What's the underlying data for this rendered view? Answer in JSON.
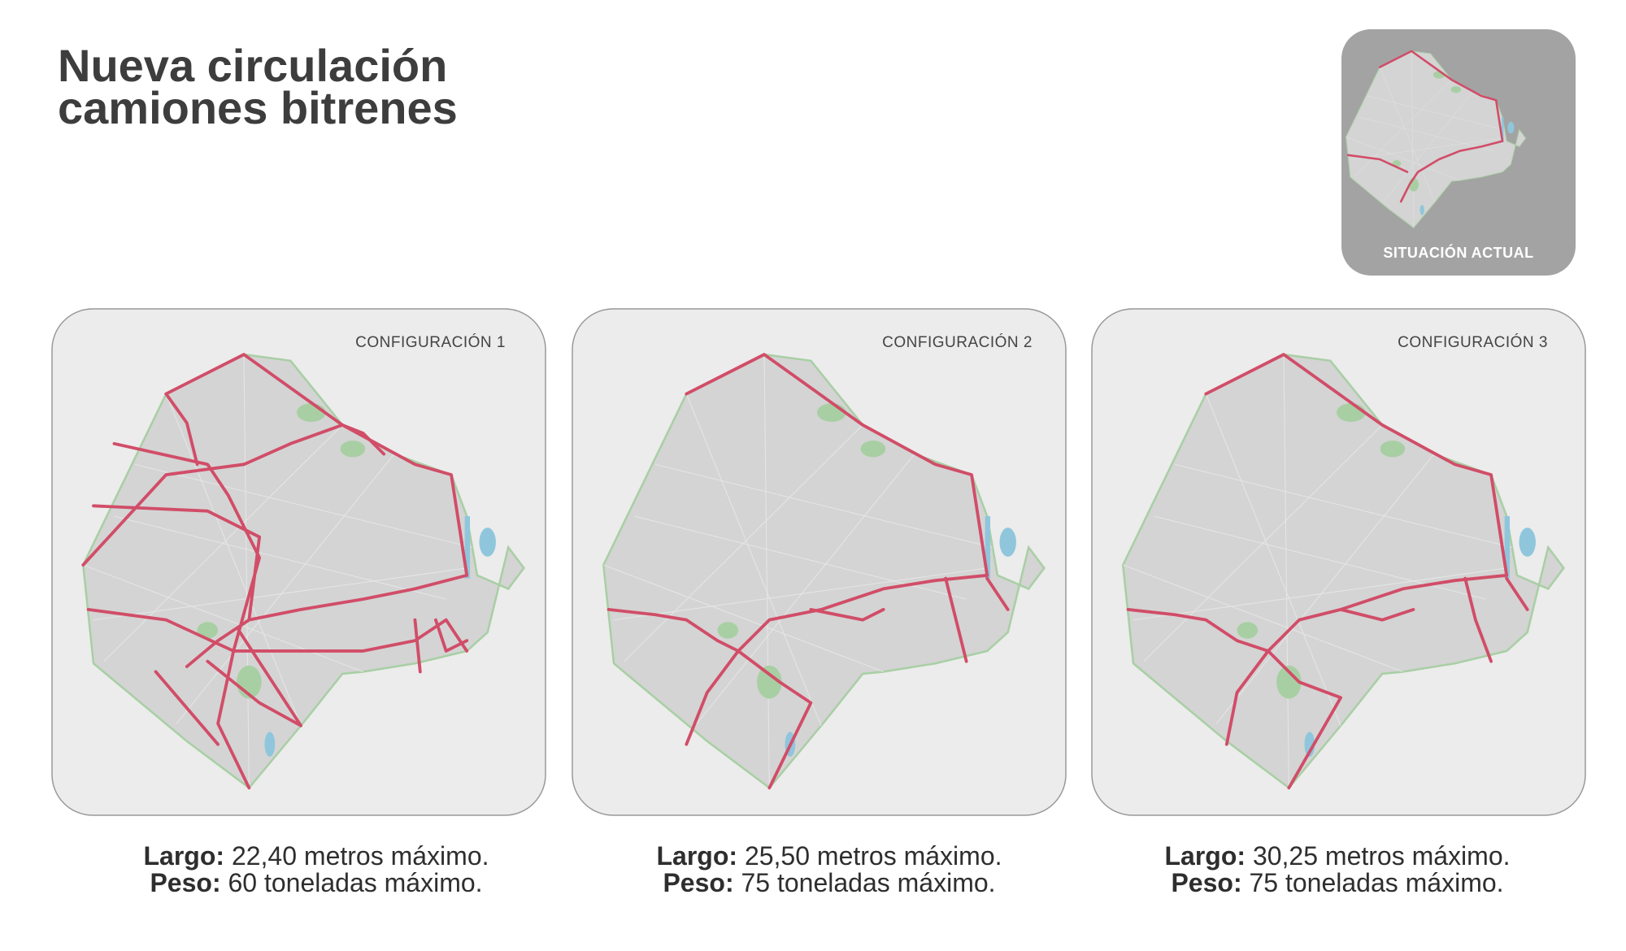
{
  "header": {
    "title_line1": "Nueva circulación",
    "title_line2": "camiones bitrenes"
  },
  "thumbnail": {
    "label": "SITUACIÓN ACTUAL"
  },
  "configurations": [
    {
      "label": "CONFIGURACIÓN 1",
      "largo_label": "Largo:",
      "largo_value": "22,40 metros máximo.",
      "peso_label": "Peso:",
      "peso_value": "60 toneladas máximo."
    },
    {
      "label": "CONFIGURACIÓN 2",
      "largo_label": "Largo:",
      "largo_value": "25,50 metros máximo.",
      "peso_label": "Peso:",
      "peso_value": "75 toneladas máximo."
    },
    {
      "label": "CONFIGURACIÓN 3",
      "largo_label": "Largo:",
      "largo_value": "30,25 metros máximo.",
      "peso_label": "Peso:",
      "peso_value": "75 toneladas máximo."
    }
  ]
}
